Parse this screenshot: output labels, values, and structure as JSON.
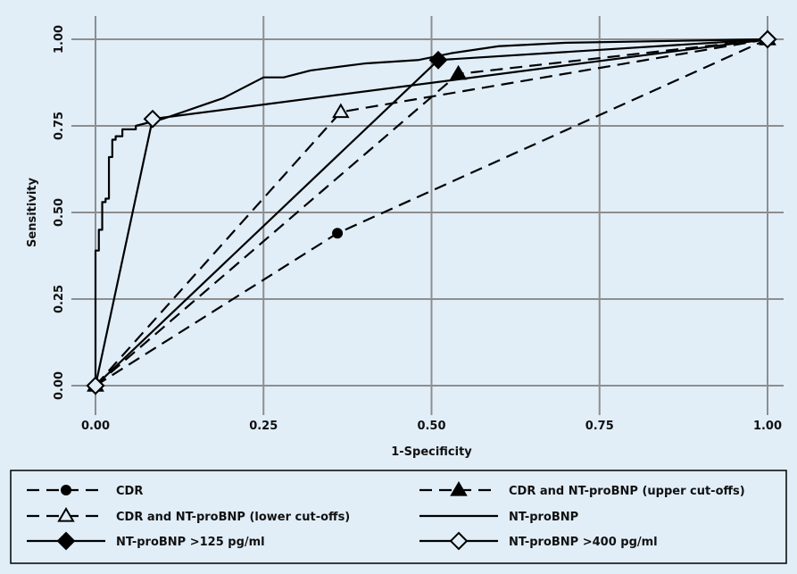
{
  "chart_data": {
    "type": "line",
    "xlabel": "1-Specificity",
    "ylabel": "Sensitivity",
    "xlim": [
      0,
      1
    ],
    "ylim": [
      0,
      1
    ],
    "xticks": [
      "0.00",
      "0.25",
      "0.50",
      "0.75",
      "1.00"
    ],
    "yticks": [
      "0.00",
      "0.25",
      "0.50",
      "0.75",
      "1.00"
    ],
    "grid": true,
    "legend_position": "bottom",
    "series": [
      {
        "name": "CDR",
        "style": "dashed",
        "marker": "circle",
        "points": [
          [
            0,
            0
          ],
          [
            0.36,
            0.44
          ],
          [
            1,
            1
          ]
        ]
      },
      {
        "name": "CDR and NT-proBNP (upper cut-offs)",
        "style": "dashed",
        "marker": "triangle",
        "points": [
          [
            0,
            0
          ],
          [
            0.54,
            0.9
          ],
          [
            1,
            1
          ]
        ]
      },
      {
        "name": "CDR and NT-proBNP (lower cut-offs)",
        "style": "dashed",
        "marker": "triangle-open",
        "points": [
          [
            0,
            0
          ],
          [
            0.365,
            0.79
          ],
          [
            1,
            1
          ]
        ]
      },
      {
        "name": "NT-proBNP",
        "style": "solid",
        "marker": "none",
        "points": [
          [
            0,
            0
          ],
          [
            0,
            0.39
          ],
          [
            0.005,
            0.39
          ],
          [
            0.005,
            0.45
          ],
          [
            0.01,
            0.45
          ],
          [
            0.01,
            0.53
          ],
          [
            0.015,
            0.53
          ],
          [
            0.015,
            0.54
          ],
          [
            0.02,
            0.54
          ],
          [
            0.02,
            0.66
          ],
          [
            0.025,
            0.66
          ],
          [
            0.025,
            0.71
          ],
          [
            0.03,
            0.71
          ],
          [
            0.03,
            0.72
          ],
          [
            0.04,
            0.72
          ],
          [
            0.04,
            0.74
          ],
          [
            0.06,
            0.74
          ],
          [
            0.06,
            0.75
          ],
          [
            0.1,
            0.77
          ],
          [
            0.13,
            0.79
          ],
          [
            0.16,
            0.81
          ],
          [
            0.19,
            0.83
          ],
          [
            0.22,
            0.86
          ],
          [
            0.25,
            0.89
          ],
          [
            0.28,
            0.89
          ],
          [
            0.32,
            0.91
          ],
          [
            0.4,
            0.93
          ],
          [
            0.48,
            0.94
          ],
          [
            0.53,
            0.96
          ],
          [
            0.6,
            0.98
          ],
          [
            0.7,
            0.99
          ],
          [
            1,
            1
          ]
        ]
      },
      {
        "name": "NT-proBNP >125 pg/ml",
        "style": "solid",
        "marker": "diamond",
        "points": [
          [
            0,
            0
          ],
          [
            0.51,
            0.94
          ],
          [
            1,
            1
          ]
        ]
      },
      {
        "name": "NT-proBNP >400 pg/ml",
        "style": "solid",
        "marker": "diamond-open",
        "points": [
          [
            0,
            0
          ],
          [
            0.085,
            0.77
          ],
          [
            1,
            1
          ]
        ]
      }
    ]
  }
}
